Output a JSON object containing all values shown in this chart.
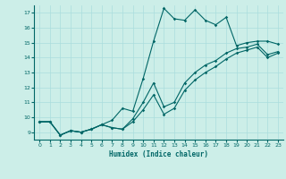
{
  "xlabel": "Humidex (Indice chaleur)",
  "bg_color": "#cceee8",
  "line_color": "#006666",
  "grid_color": "#aadddd",
  "xlim": [
    -0.5,
    23.5
  ],
  "ylim": [
    8.5,
    17.5
  ],
  "xticks": [
    0,
    1,
    2,
    3,
    4,
    5,
    6,
    7,
    8,
    9,
    10,
    11,
    12,
    13,
    14,
    15,
    16,
    17,
    18,
    19,
    20,
    21,
    22,
    23
  ],
  "yticks": [
    9,
    10,
    11,
    12,
    13,
    14,
    15,
    16,
    17
  ],
  "line1_x": [
    0,
    1,
    2,
    3,
    4,
    5,
    6,
    7,
    8,
    9,
    10,
    11,
    12,
    13,
    14,
    15,
    16,
    17,
    18,
    19,
    20,
    21,
    22,
    23
  ],
  "line1_y": [
    9.7,
    9.7,
    8.8,
    9.1,
    9.0,
    9.2,
    9.5,
    9.8,
    10.6,
    10.4,
    12.6,
    15.1,
    17.3,
    16.6,
    16.5,
    17.2,
    16.5,
    16.2,
    16.7,
    14.8,
    15.0,
    15.1,
    15.1,
    14.9
  ],
  "line2_x": [
    0,
    1,
    2,
    3,
    4,
    5,
    6,
    7,
    8,
    9,
    10,
    11,
    12,
    13,
    14,
    15,
    16,
    17,
    18,
    19,
    20,
    21,
    22,
    23
  ],
  "line2_y": [
    9.7,
    9.7,
    8.8,
    9.1,
    9.0,
    9.2,
    9.5,
    9.3,
    9.2,
    9.9,
    11.0,
    12.3,
    10.7,
    11.0,
    12.3,
    13.0,
    13.5,
    13.8,
    14.3,
    14.6,
    14.7,
    14.9,
    14.2,
    14.4
  ],
  "line3_x": [
    0,
    1,
    2,
    3,
    4,
    5,
    6,
    7,
    8,
    9,
    10,
    11,
    12,
    13,
    14,
    15,
    16,
    17,
    18,
    19,
    20,
    21,
    22,
    23
  ],
  "line3_y": [
    9.7,
    9.7,
    8.8,
    9.1,
    9.0,
    9.2,
    9.5,
    9.3,
    9.2,
    9.7,
    10.5,
    11.5,
    10.2,
    10.6,
    11.8,
    12.5,
    13.0,
    13.4,
    13.9,
    14.3,
    14.5,
    14.7,
    14.0,
    14.3
  ]
}
